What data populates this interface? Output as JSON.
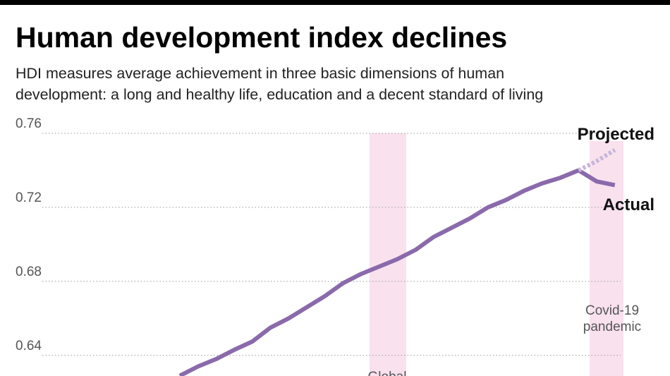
{
  "chart_data": {
    "type": "line",
    "title": "Human development index declines",
    "subtitle": [
      "HDI measures average achievement in three basic dimensions of human",
      "development: a long and healthy life, education and a decent standard of living"
    ],
    "categories": [
      null,
      null,
      null,
      null,
      null,
      null,
      null,
      null,
      null,
      null,
      null,
      null,
      null,
      null,
      null,
      null,
      null,
      null,
      null,
      null,
      null,
      null,
      null,
      null,
      null
    ],
    "series": [
      {
        "name": "Actual",
        "color": "#8a6aab",
        "values": [
          0.629,
          0.634,
          0.638,
          0.643,
          0.6475,
          0.655,
          0.66,
          0.666,
          0.672,
          0.679,
          0.684,
          0.688,
          0.692,
          0.697,
          0.704,
          0.709,
          0.714,
          0.72,
          0.724,
          0.729,
          0.733,
          0.736,
          0.74,
          0.734,
          0.732
        ]
      },
      {
        "name": "Projected",
        "color": "#c8b5da",
        "dashed": true,
        "values": [
          null,
          null,
          null,
          null,
          null,
          null,
          null,
          null,
          null,
          null,
          null,
          null,
          null,
          null,
          null,
          null,
          null,
          null,
          null,
          null,
          null,
          null,
          0.74,
          0.745,
          0.751
        ]
      }
    ],
    "ylim": [
      0.63,
      0.76
    ],
    "yticks": [
      0.64,
      0.68,
      0.72,
      0.76
    ],
    "grid": true,
    "annotations": {
      "crisis": "Global",
      "covid": [
        "Covid-19",
        "pandemic"
      ]
    }
  }
}
